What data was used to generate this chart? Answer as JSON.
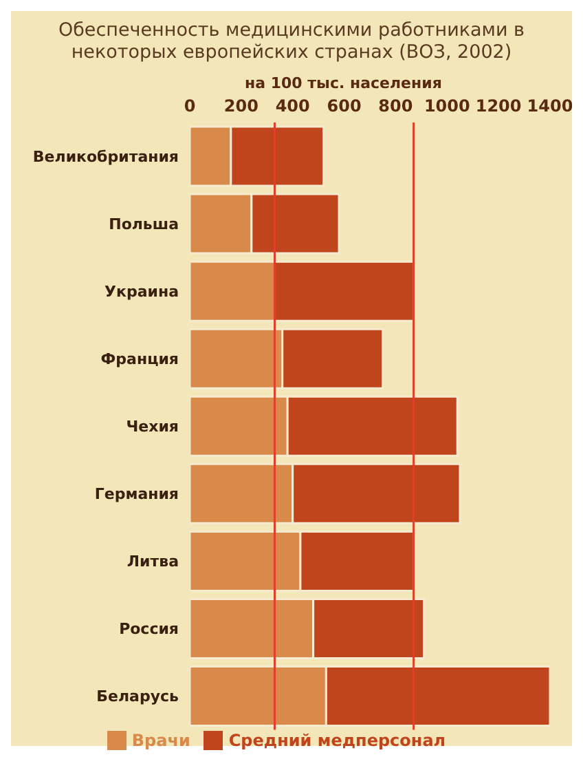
{
  "chart_data": {
    "type": "bar",
    "orientation": "horizontal",
    "stacked": true,
    "title": "Обеспеченность медицинскими работниками в некоторых европейских странах (ВОЗ, 2002)",
    "xlabel": "на 100 тыс. населения",
    "categories": [
      "Великобритания",
      "Польша",
      "Украина",
      "Франция",
      "Чехия",
      "Германия",
      "Литва",
      "Россия",
      "Беларусь"
    ],
    "series": [
      {
        "name": "Врачи",
        "color": "#d98a4a",
        "values": [
          160,
          240,
          330,
          360,
          380,
          400,
          430,
          480,
          530
        ]
      },
      {
        "name": "Средний медперсонал",
        "color": "#c0441c",
        "values": [
          360,
          340,
          540,
          390,
          660,
          650,
          440,
          430,
          870
        ]
      }
    ],
    "xlim": [
      0,
      1400
    ],
    "xticks": [
      0,
      200,
      400,
      600,
      800,
      1000,
      1200,
      1400
    ],
    "ref_lines": [
      {
        "axis": "x",
        "value": 330,
        "color": "#e0402a"
      },
      {
        "axis": "x",
        "value": 870,
        "color": "#e0402a"
      }
    ],
    "grid": false,
    "legend": "bottom"
  }
}
